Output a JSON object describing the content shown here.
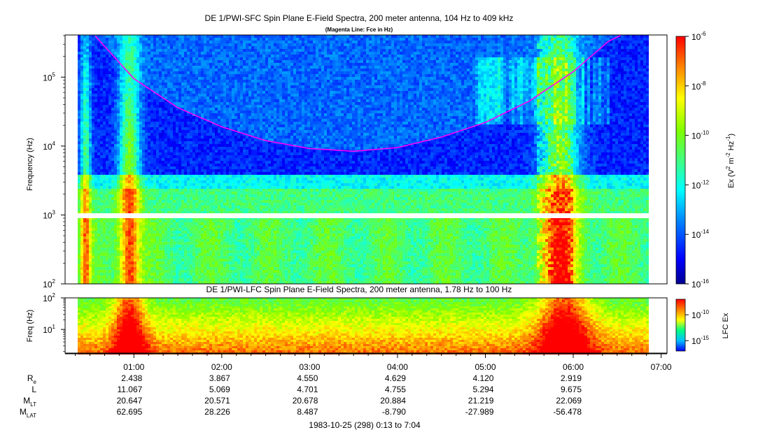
{
  "chart_data": [
    {
      "type": "heatmap",
      "title": "DE 1/PWI-SFC  Spin Plane E-Field Spectra, 200 meter antenna, 104 Hz to 409 kHz",
      "subtitle": "(Magenta Line: Fce in Hz)",
      "ylabel": "Frequency (Hz)",
      "y_scale": "log",
      "ylim": [
        100,
        409000
      ],
      "y_ticks": [
        {
          "value": 100,
          "base": "10",
          "exp": "2"
        },
        {
          "value": 1000,
          "base": "10",
          "exp": "3"
        },
        {
          "value": 10000,
          "base": "10",
          "exp": "4"
        },
        {
          "value": 100000,
          "base": "10",
          "exp": "5"
        }
      ],
      "colorbar": {
        "label_prefix": "Ex (V",
        "label_sup1": "2",
        "label_mid": " m",
        "label_sup2": "-2",
        "label_mid2": " Hz",
        "label_sup3": "-1",
        "label_suffix": ")",
        "scale": "log",
        "range": [
          1e-16,
          1e-06
        ],
        "ticks": [
          {
            "value": 1e-06,
            "base": "10",
            "exp": "-6"
          },
          {
            "value": 1e-08,
            "base": "10",
            "exp": "-8"
          },
          {
            "value": 1e-10,
            "base": "10",
            "exp": "-10"
          },
          {
            "value": 1e-12,
            "base": "10",
            "exp": "-12"
          },
          {
            "value": 1e-14,
            "base": "10",
            "exp": "-14"
          },
          {
            "value": 1e-16,
            "base": "10",
            "exp": "-16"
          }
        ]
      },
      "fce_line": {
        "color": "#ff00ff",
        "points": [
          {
            "t": 0.55,
            "f": 409000
          },
          {
            "t": 1.0,
            "f": 95000
          },
          {
            "t": 1.5,
            "f": 36000
          },
          {
            "t": 2.0,
            "f": 19000
          },
          {
            "t": 2.5,
            "f": 12000
          },
          {
            "t": 3.0,
            "f": 9200
          },
          {
            "t": 3.5,
            "f": 8400
          },
          {
            "t": 4.0,
            "f": 9500
          },
          {
            "t": 4.5,
            "f": 13500
          },
          {
            "t": 5.0,
            "f": 22000
          },
          {
            "t": 5.5,
            "f": 45000
          },
          {
            "t": 6.0,
            "f": 120000
          },
          {
            "t": 6.4,
            "f": 330000
          },
          {
            "t": 6.55,
            "f": 409000
          }
        ]
      }
    },
    {
      "type": "heatmap",
      "title": "DE 1/PWI-LFC  Spin Plane E-Field Spectra, 200 meter antenna, 1.78 Hz to 100 Hz",
      "ylabel": "Freq (Hz)",
      "y_scale": "log",
      "ylim": [
        1.78,
        100
      ],
      "y_ticks": [
        {
          "value": 10,
          "base": "10",
          "exp": "1"
        },
        {
          "value": 100,
          "base": "10",
          "exp": "2"
        }
      ],
      "colorbar": {
        "label": "LFC Ex",
        "scale": "log",
        "range": [
          1e-17,
          1e-07
        ],
        "ticks": [
          {
            "value": 1e-10,
            "base": "10",
            "exp": "-10"
          },
          {
            "value": 1e-15,
            "base": "10",
            "exp": "-15"
          }
        ]
      }
    }
  ],
  "x_axis": {
    "range_hours": [
      0.217,
      7.067
    ],
    "ticks": [
      {
        "value": 1,
        "label": "01:00"
      },
      {
        "value": 2,
        "label": "02:00"
      },
      {
        "value": 3,
        "label": "03:00"
      },
      {
        "value": 4,
        "label": "04:00"
      },
      {
        "value": 5,
        "label": "05:00"
      },
      {
        "value": 6,
        "label": "06:00"
      },
      {
        "value": 7,
        "label": "07:00"
      }
    ]
  },
  "ephemeris": {
    "rows": [
      {
        "label": "R",
        "sub": "e",
        "values": [
          "2.438",
          "3.867",
          "4.550",
          "4.629",
          "4.120",
          "2.919"
        ]
      },
      {
        "label": "L",
        "sub": "",
        "values": [
          "11.067",
          "5.069",
          "4.701",
          "4.755",
          "5.294",
          "9.675"
        ]
      },
      {
        "label": "M",
        "sub": "LT",
        "values": [
          "20.647",
          "20.571",
          "20.678",
          "20.884",
          "21.219",
          "22.069"
        ]
      },
      {
        "label": "M",
        "sub": "LAT",
        "values": [
          "62.695",
          "28.226",
          "8.487",
          "-8.790",
          "-27.989",
          "-56.478"
        ]
      }
    ]
  },
  "footer": "1983-10-25 (298) 0:13 to 7:04"
}
